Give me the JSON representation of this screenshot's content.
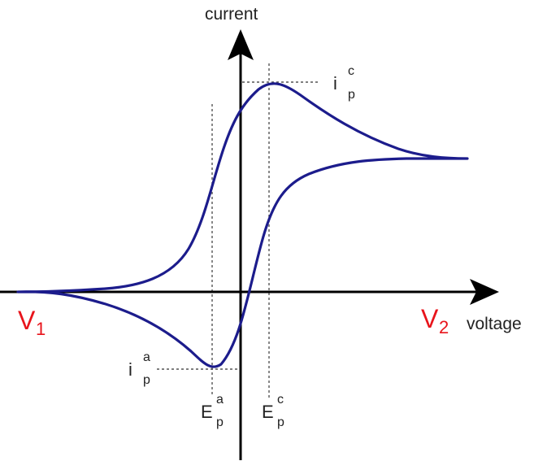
{
  "axes": {
    "y_label": "current",
    "x_label": "voltage"
  },
  "voltages": {
    "start": {
      "main": "V",
      "sub": "1"
    },
    "end": {
      "main": "V",
      "sub": "2"
    }
  },
  "peaks": {
    "cathodic_current": {
      "main": "i",
      "sup": "c",
      "sub": "p"
    },
    "anodic_current": {
      "main": "i",
      "sup": "a",
      "sub": "p"
    },
    "anodic_potential": {
      "main": "E",
      "sup": "a",
      "sub": "p"
    },
    "cathodic_potential": {
      "main": "E",
      "sup": "c",
      "sub": "p"
    }
  },
  "colors": {
    "curve": "#1c1c8c",
    "axis": "#000000",
    "voltage_labels": "#e8141b",
    "guides": "#555555"
  }
}
